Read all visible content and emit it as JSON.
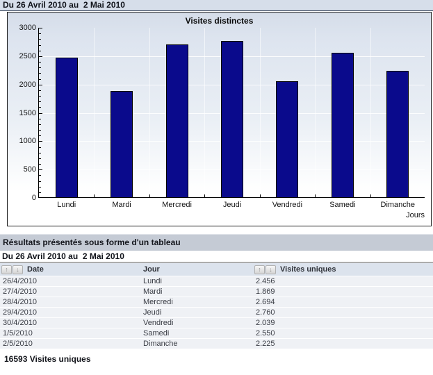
{
  "header": {
    "period": "Du 26 Avril 2010 au  2 Mai 2010"
  },
  "chart_data": {
    "type": "bar",
    "title": "Visites distinctes",
    "categories": [
      "Lundi",
      "Mardi",
      "Mercredi",
      "Jeudi",
      "Vendredi",
      "Samedi",
      "Dimanche"
    ],
    "values": [
      2456,
      1869,
      2694,
      2760,
      2039,
      2550,
      2225
    ],
    "xlabel": "Jours",
    "ylabel": "",
    "ylim": [
      0,
      3000
    ],
    "yticks": [
      0,
      500,
      1000,
      1500,
      2000,
      2500,
      3000
    ],
    "minor_tick_step": 100,
    "grid": true,
    "legend_position": "none",
    "bar_color": "#0a0a8c"
  },
  "table": {
    "section_title": "Résultats présentés sous forme d'un tableau",
    "period": "Du 26 Avril 2010 au  2 Mai 2010",
    "columns": [
      {
        "label": "Date",
        "sortable": true
      },
      {
        "label": "Jour",
        "sortable": false
      },
      {
        "label": "Visites uniques",
        "sortable": true
      }
    ],
    "rows": [
      {
        "date": "26/4/2010",
        "jour": "Lundi",
        "visites": "2.456"
      },
      {
        "date": "27/4/2010",
        "jour": "Mardi",
        "visites": "1.869"
      },
      {
        "date": "28/4/2010",
        "jour": "Mercredi",
        "visites": "2.694"
      },
      {
        "date": "29/4/2010",
        "jour": "Jeudi",
        "visites": "2.760"
      },
      {
        "date": "30/4/2010",
        "jour": "Vendredi",
        "visites": "2.039"
      },
      {
        "date": "1/5/2010",
        "jour": "Samedi",
        "visites": "2.550"
      },
      {
        "date": "2/5/2010",
        "jour": "Dimanche",
        "visites": "2.225"
      }
    ],
    "total": "16593 Visites uniques"
  },
  "icons": {
    "sort_asc": "↑",
    "sort_desc": "↓"
  },
  "colors": {
    "bar": "#0a0a8c",
    "header_bg": "#d6deea",
    "section_band_bg": "#c5cbd5",
    "col_header_bg": "#dce3ed",
    "row_bg": "#eff1f5"
  }
}
